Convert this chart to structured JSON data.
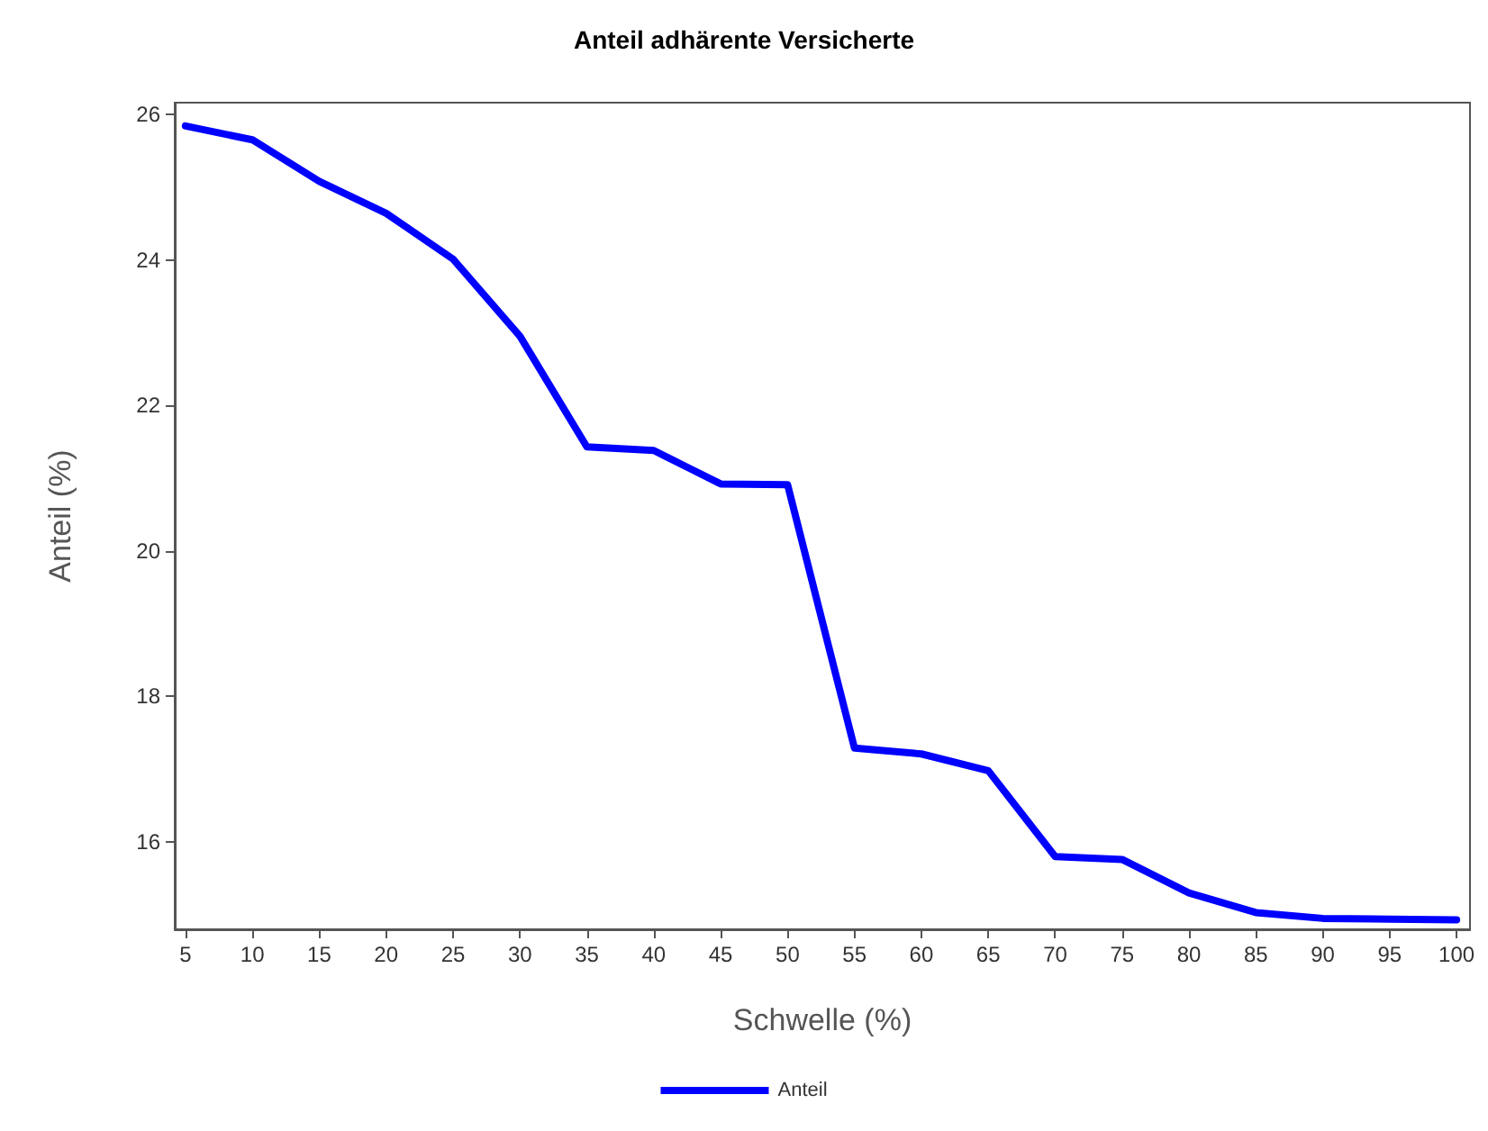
{
  "chart_data": {
    "type": "line",
    "title": "Anteil adhärente Versicherte",
    "xlabel": "Schwelle (%)",
    "ylabel": "Anteil (%)",
    "x": [
      5,
      10,
      15,
      20,
      25,
      30,
      35,
      40,
      45,
      50,
      55,
      60,
      65,
      70,
      75,
      80,
      85,
      90,
      95,
      100
    ],
    "series": [
      {
        "name": "Anteil",
        "color": "#0000ff",
        "values": [
          25.84,
          25.65,
          25.08,
          24.64,
          24.01,
          22.95,
          21.43,
          21.38,
          20.92,
          20.91,
          17.29,
          17.21,
          16.98,
          15.8,
          15.76,
          15.3,
          15.03,
          14.95,
          14.94,
          14.93
        ]
      }
    ],
    "xlim": [
      4.2,
      101
    ],
    "xticks": [
      5,
      10,
      15,
      20,
      25,
      30,
      35,
      40,
      45,
      50,
      55,
      60,
      65,
      70,
      75,
      80,
      85,
      90,
      95,
      100
    ],
    "ylim": [
      14.8,
      26.16
    ],
    "yticks": [
      16,
      18,
      20,
      22,
      24,
      26
    ],
    "grid": false,
    "legend": "bottom",
    "marker": "none",
    "line_style": "solid"
  }
}
